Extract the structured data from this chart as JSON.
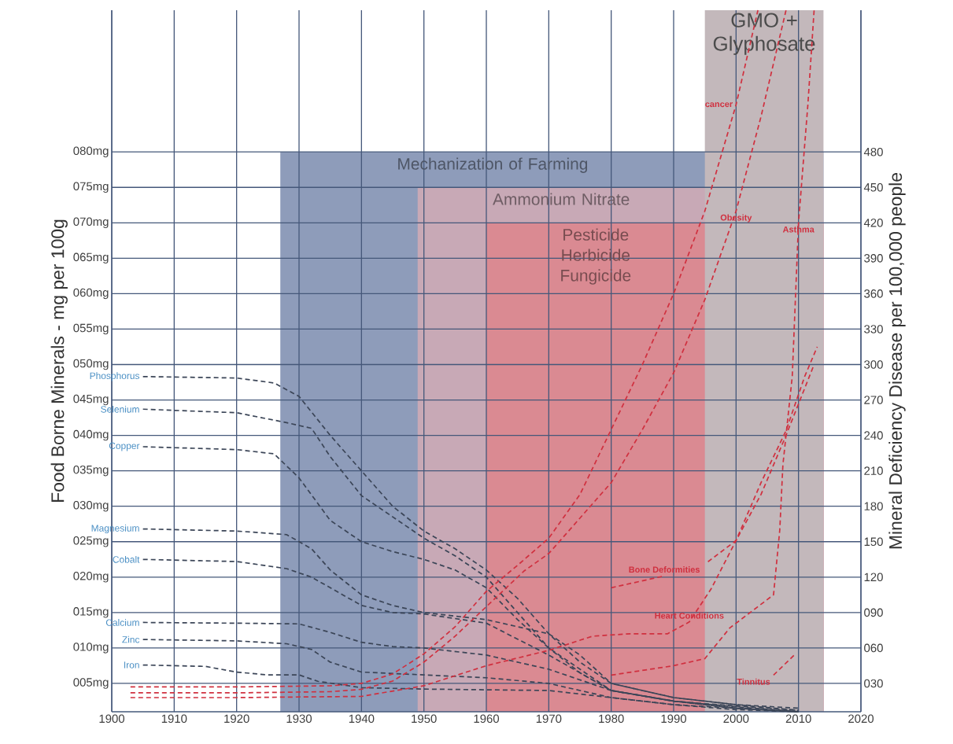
{
  "chart_data": {
    "type": "line",
    "xlabel": null,
    "ylabel": "Food Borne Minerals - mg per 100g",
    "y2label": "Mineral Deficiency Disease per 100,000 people",
    "xlim": [
      1900,
      2020
    ],
    "xticks": [
      1900,
      1910,
      1920,
      1930,
      1940,
      1950,
      1960,
      1970,
      1980,
      1990,
      2000,
      2010,
      2020
    ],
    "ylim": [
      1,
      100
    ],
    "yticks": [
      {
        "value": 5,
        "label": "005mg"
      },
      {
        "value": 10,
        "label": "010mg"
      },
      {
        "value": 15,
        "label": "015mg"
      },
      {
        "value": 20,
        "label": "020mg"
      },
      {
        "value": 25,
        "label": "025mg"
      },
      {
        "value": 30,
        "label": "030mg"
      },
      {
        "value": 35,
        "label": "035mg"
      },
      {
        "value": 40,
        "label": "040mg"
      },
      {
        "value": 45,
        "label": "045mg"
      },
      {
        "value": 50,
        "label": "050mg"
      },
      {
        "value": 55,
        "label": "055mg"
      },
      {
        "value": 60,
        "label": "060mg"
      },
      {
        "value": 65,
        "label": "065mg"
      },
      {
        "value": 70,
        "label": "070mg"
      },
      {
        "value": 75,
        "label": "075mg"
      },
      {
        "value": 80,
        "label": "080mg"
      }
    ],
    "y2lim": [
      6,
      600
    ],
    "y2ticks": [
      {
        "value": 30,
        "label": "030"
      },
      {
        "value": 60,
        "label": "060"
      },
      {
        "value": 90,
        "label": "090"
      },
      120,
      150,
      180,
      210,
      240,
      270,
      300,
      330,
      360,
      390,
      420,
      450,
      480
    ],
    "grid": true,
    "line_style": "dashed",
    "bands": [
      {
        "axis": "x",
        "from": 1927,
        "to": 2014,
        "label": "Mechanization of Farming",
        "color": "#8e9cba"
      },
      {
        "axis": "x",
        "from": 1949,
        "to": 2014,
        "label": "Ammonium Nitrate",
        "color": "#c8a9b6"
      },
      {
        "axis": "x",
        "from": 1960,
        "to": 2014,
        "label": "Pesticide Herbicide Fungicide",
        "color": "#da8a92"
      },
      {
        "axis": "x",
        "from": 1995,
        "to": 2014,
        "label": "GMO + Glyphosate",
        "color": "#c3b8bb"
      }
    ],
    "series": [
      {
        "name": "Phosphorus",
        "color": "#3b4557",
        "x": [
          1905,
          1920,
          1926,
          1930,
          1935,
          1940,
          1945,
          1950,
          1955,
          1960,
          1965,
          1970,
          1975,
          1980,
          1990,
          2000,
          2010
        ],
        "values": [
          48.3,
          48.1,
          47.4,
          45.5,
          40,
          35,
          30,
          26.5,
          24,
          21,
          17,
          12,
          8,
          5,
          3,
          2,
          1.5
        ]
      },
      {
        "name": "Selenium",
        "color": "#3b4557",
        "x": [
          1905,
          1920,
          1928,
          1932,
          1935,
          1940,
          1945,
          1950,
          1955,
          1960,
          1965,
          1970,
          1975,
          1980,
          1990,
          2000,
          2010
        ],
        "values": [
          43.7,
          43.2,
          41.8,
          41,
          37,
          31.5,
          28.5,
          25.5,
          23,
          20,
          15,
          10,
          6.5,
          4,
          2.5,
          1.5,
          1
        ]
      },
      {
        "name": "Copper",
        "color": "#3b4557",
        "x": [
          1905,
          1920,
          1926,
          1930,
          1935,
          1940,
          1945,
          1950,
          1955,
          1960,
          1965,
          1970,
          1975,
          1980,
          1990,
          2000,
          2010
        ],
        "values": [
          38.4,
          38,
          37.4,
          34,
          28,
          25,
          23.6,
          22.5,
          21,
          18.5,
          14,
          10,
          7,
          4,
          2.5,
          1.5,
          1
        ]
      },
      {
        "name": "Magnesium",
        "color": "#3b4557",
        "x": [
          1905,
          1920,
          1928,
          1932,
          1935,
          1940,
          1945,
          1950,
          1960,
          1970,
          1975,
          1980,
          1990,
          2000,
          2010
        ],
        "values": [
          26.8,
          26.5,
          26,
          24,
          21,
          17.5,
          16,
          15,
          14,
          12,
          9,
          5,
          3,
          2,
          1.2
        ]
      },
      {
        "name": "Cobalt",
        "color": "#3b4557",
        "x": [
          1905,
          1920,
          1928,
          1932,
          1936,
          1940,
          1945,
          1950,
          1960,
          1970,
          1980,
          1990,
          2000,
          2010
        ],
        "values": [
          22.5,
          22.2,
          21.2,
          20,
          18,
          16,
          15,
          14.8,
          13.5,
          9,
          4,
          2.5,
          1.8,
          1.2
        ]
      },
      {
        "name": "Calcium",
        "color": "#3b4557",
        "x": [
          1905,
          1920,
          1930,
          1935,
          1940,
          1945,
          1950,
          1960,
          1970,
          1980,
          1990,
          2000,
          2010
        ],
        "values": [
          13.6,
          13.5,
          13.4,
          12.2,
          10.8,
          10.2,
          10,
          9,
          7,
          4,
          2.5,
          1.7,
          1
        ]
      },
      {
        "name": "Zinc",
        "color": "#3b4557",
        "x": [
          1905,
          1920,
          1928,
          1932,
          1935,
          1940,
          1945,
          1950,
          1960,
          1970,
          1980,
          1990,
          2000,
          2010
        ],
        "values": [
          11.2,
          11,
          10.6,
          9.8,
          8,
          6.6,
          6.4,
          6.2,
          5.8,
          5,
          3,
          2,
          1.3,
          1
        ]
      },
      {
        "name": "Iron",
        "color": "#3b4557",
        "x": [
          1905,
          1915,
          1920,
          1925,
          1930,
          1933,
          1940,
          1950,
          1960,
          1970,
          1980,
          1990,
          2000,
          2010
        ],
        "values": [
          7.6,
          7.4,
          6.6,
          6.2,
          6.2,
          5.3,
          4.4,
          4.2,
          4.1,
          4,
          3,
          2,
          1.5,
          1
        ]
      },
      {
        "name": "cancer",
        "color": "#d0303f",
        "axis": "y2",
        "x": [
          1903,
          1920,
          1935,
          1940,
          1945,
          1950,
          1955,
          1960,
          1965,
          1970,
          1975,
          1980,
          1985,
          1990,
          1995,
          2000,
          2003.5
        ],
        "values": [
          27,
          27,
          28,
          30,
          38,
          55,
          78,
          108,
          130,
          153,
          190,
          245,
          300,
          360,
          430,
          520,
          600
        ]
      },
      {
        "name": "Obesity",
        "color": "#d0303f",
        "axis": "y2",
        "x": [
          1903,
          1920,
          1935,
          1940,
          1945,
          1950,
          1955,
          1960,
          1966,
          1970,
          1975,
          1980,
          1985,
          1990,
          1995,
          2000,
          2004,
          2008
        ],
        "values": [
          22,
          22,
          23,
          25,
          32,
          48,
          70,
          95,
          125,
          140,
          170,
          200,
          245,
          293,
          355,
          430,
          510,
          600
        ]
      },
      {
        "name": "Asthma",
        "color": "#d0303f",
        "axis": "y2",
        "x": [
          1980,
          1990,
          1995,
          1999,
          2002.5,
          2006,
          2007,
          2007.5,
          2009,
          2010,
          2011.5,
          2012.5
        ],
        "values": [
          37,
          45,
          51,
          77,
          91,
          105,
          160,
          215,
          290,
          420,
          520,
          600
        ]
      },
      {
        "name": "Bone Deformities",
        "color": "#d0303f",
        "axis": "y2",
        "x": [
          1980,
          1988.5,
          1992,
          1995.5,
          2000,
          2004,
          2008,
          2011,
          2012.5
        ],
        "values": [
          111,
          121,
          null,
          133,
          151,
          190,
          240,
          280,
          300
        ]
      },
      {
        "name": "Heart Conditions",
        "color": "#d0303f",
        "axis": "y2",
        "x": [
          1903,
          1920,
          1940,
          1950,
          1960,
          1970,
          1977,
          1983,
          1989,
          1992.5,
          1996,
          2000,
          2004,
          2008,
          2011,
          2013
        ],
        "values": [
          18,
          18,
          19,
          28,
          45,
          58,
          70,
          72,
          72,
          82,
          110,
          151,
          200,
          244,
          290,
          315
        ]
      },
      {
        "name": "Tinnitus",
        "color": "#d0303f",
        "axis": "y2",
        "x": [
          2006,
          2009.5
        ],
        "values": [
          37,
          55
        ]
      }
    ]
  }
}
